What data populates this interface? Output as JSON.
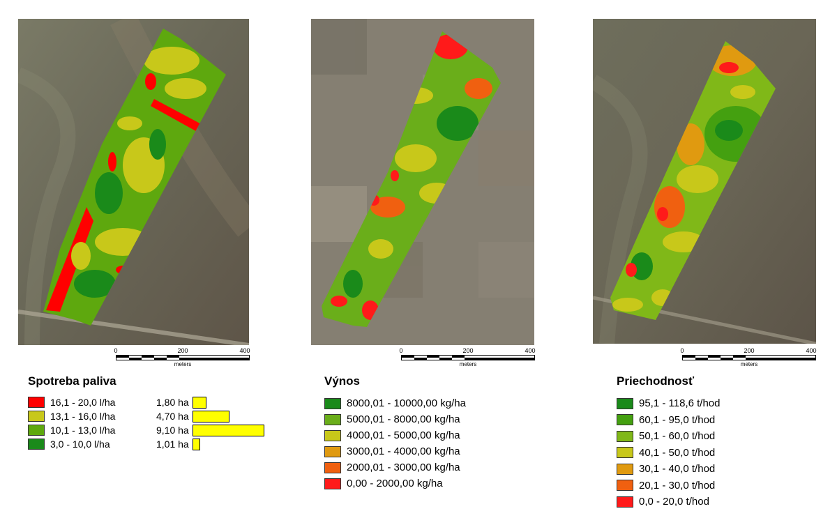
{
  "maps": [
    {
      "id": "fuel",
      "background": "#6f6a58",
      "scale": {
        "ticks": [
          "0",
          "200",
          "400"
        ],
        "unit": "meters"
      }
    },
    {
      "id": "yield",
      "background": "#7d776a",
      "scale": {
        "ticks": [
          "0",
          "200",
          "400"
        ],
        "unit": "meters"
      }
    },
    {
      "id": "throughput",
      "background": "#6d6a5a",
      "scale": {
        "ticks": [
          "0",
          "200",
          "400"
        ],
        "unit": "meters"
      }
    }
  ],
  "legends": {
    "fuel": {
      "title": "Spotreba paliva",
      "items": [
        {
          "label": "16,1 - 20,0 l/ha",
          "area": "1,80 ha",
          "area_value": 1.8,
          "color": "#ff0000"
        },
        {
          "label": "13,1 - 16,0 l/ha",
          "area": "4,70 ha",
          "area_value": 4.7,
          "color": "#c8c81a"
        },
        {
          "label": "10,1 - 13,0 l/ha",
          "area": "9,10 ha",
          "area_value": 9.1,
          "color": "#5ea80e"
        },
        {
          "label": "3,0 - 10,0 l/ha",
          "area": "1,01 ha",
          "area_value": 1.01,
          "color": "#1a8a1a"
        }
      ]
    },
    "yield": {
      "title": "Výnos",
      "items": [
        {
          "label": "8000,01 - 10000,00 kg/ha",
          "color": "#1a8a1a"
        },
        {
          "label": "5000,01 - 8000,00 kg/ha",
          "color": "#6aae1a"
        },
        {
          "label": "4000,01 - 5000,00 kg/ha",
          "color": "#c8c81a"
        },
        {
          "label": "3000,01 - 4000,00 kg/ha",
          "color": "#e09a10"
        },
        {
          "label": "2000,01 - 3000,00 kg/ha",
          "color": "#f06010"
        },
        {
          "label": "0,00 - 2000,00 kg/ha",
          "color": "#ff1a1a"
        }
      ]
    },
    "throughput": {
      "title": "Priechodnosť",
      "items": [
        {
          "label": "95,1 - 118,6 t/hod",
          "color": "#1a8a1a"
        },
        {
          "label": "60,1 - 95,0 t/hod",
          "color": "#44a010"
        },
        {
          "label": "50,1 - 60,0 t/hod",
          "color": "#80b818"
        },
        {
          "label": "40,1 - 50,0 t/hod",
          "color": "#c8c81a"
        },
        {
          "label": "30,1 - 40,0 t/hod",
          "color": "#e09a10"
        },
        {
          "label": "20,1 - 30,0 t/hod",
          "color": "#f06010"
        },
        {
          "label": "0,0 - 20,0 t/hod",
          "color": "#ff1a1a"
        }
      ]
    }
  }
}
